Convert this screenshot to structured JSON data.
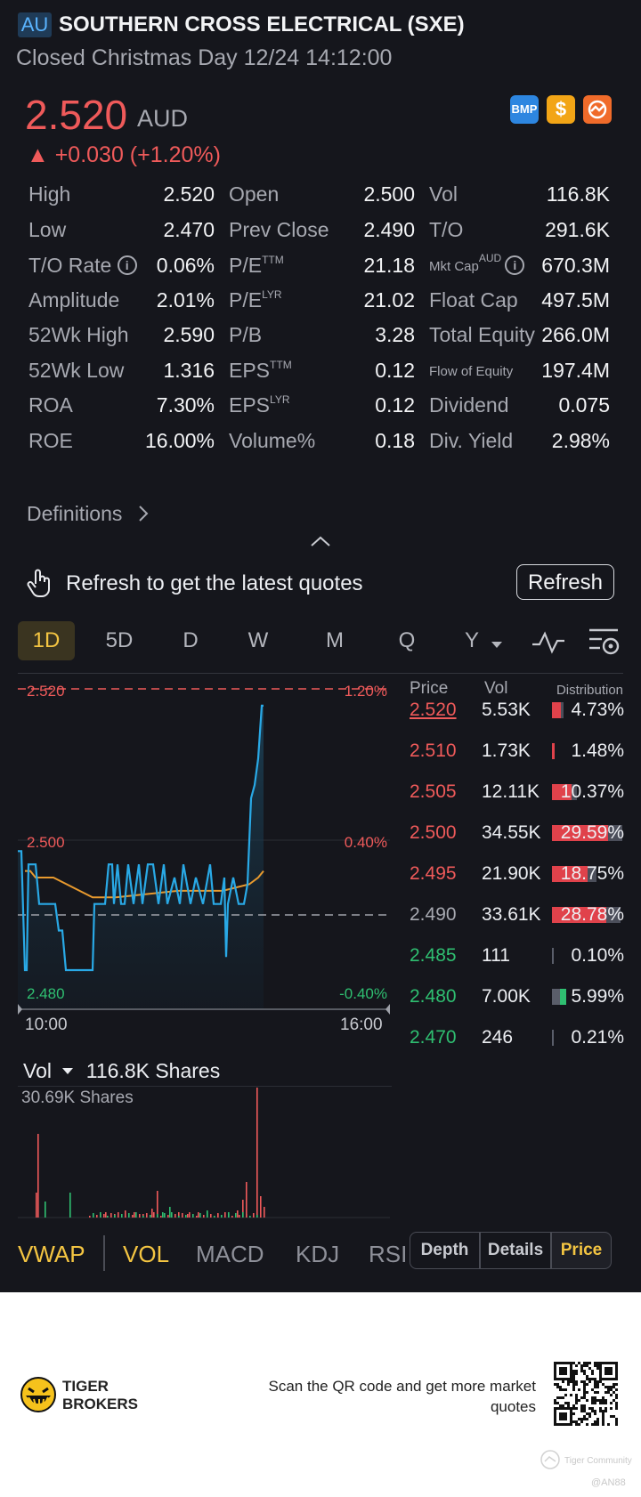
{
  "header": {
    "market": "AU",
    "title": "SOUTHERN CROSS ELECTRICAL (SXE)",
    "status": "Closed Christmas Day 12/24 14:12:00"
  },
  "quote": {
    "price": "2.520",
    "currency": "AUD",
    "change": "▲ +0.030 (+1.20%)",
    "badge_bmp": "BMP"
  },
  "stats": {
    "col1": [
      {
        "label": "High",
        "value": "2.520"
      },
      {
        "label": "Low",
        "value": "2.470"
      },
      {
        "label": "T/O Rate",
        "value": "0.06%"
      },
      {
        "label": "Amplitude",
        "value": "2.01%"
      },
      {
        "label": "52Wk High",
        "value": "2.590"
      },
      {
        "label": "52Wk Low",
        "value": "1.316"
      },
      {
        "label": "ROA",
        "value": "7.30%"
      },
      {
        "label": "ROE",
        "value": "16.00%"
      }
    ],
    "col2": [
      {
        "label": "Open",
        "sup": "",
        "value": "2.500"
      },
      {
        "label": "Prev Close",
        "sup": "",
        "value": "2.490"
      },
      {
        "label": "P/E",
        "sup": "TTM",
        "value": "21.18"
      },
      {
        "label": "P/E",
        "sup": "LYR",
        "value": "21.02"
      },
      {
        "label": "P/B",
        "sup": "",
        "value": "3.28"
      },
      {
        "label": "EPS",
        "sup": "TTM",
        "value": "0.12"
      },
      {
        "label": "EPS",
        "sup": "LYR",
        "value": "0.12"
      },
      {
        "label": "Volume%",
        "sup": "",
        "value": "0.18"
      }
    ],
    "col3": [
      {
        "label": "Vol",
        "value": "116.8K"
      },
      {
        "label": "T/O",
        "value": "291.6K"
      },
      {
        "label": "Mkt Cap",
        "sup": "AUD",
        "value": "670.3M"
      },
      {
        "label": "Float Cap",
        "value": "497.5M"
      },
      {
        "label": "Total Equity",
        "value": "266.0M"
      },
      {
        "label": "Flow of Equity",
        "value": "197.4M"
      },
      {
        "label": "Dividend",
        "value": "0.075"
      },
      {
        "label": "Div. Yield",
        "value": "2.98%"
      }
    ]
  },
  "definitions_label": "Definitions",
  "refresh": {
    "message": "Refresh to get the latest quotes",
    "button": "Refresh"
  },
  "periods": [
    "1D",
    "5D",
    "D",
    "W",
    "M",
    "Q",
    "Y"
  ],
  "active_period": "1D",
  "chart": {
    "y_labels": {
      "top": "2.520",
      "mid": "2.500",
      "bottom": "2.480"
    },
    "pct_labels": {
      "top": "1.20%",
      "mid": "0.40%",
      "bottom": "-0.40%"
    },
    "x_labels": {
      "start": "10:00",
      "end": "16:00"
    }
  },
  "chart_data": {
    "type": "line",
    "xlabel": "",
    "ylabel": "",
    "x": [
      "10:00",
      "16:00"
    ],
    "ylim": [
      2.476,
      2.522
    ],
    "prev_close": 2.49,
    "series": [],
    "volume": {
      "title": "Vol",
      "total": "116.8K Shares",
      "max": "30.69K Shares"
    }
  },
  "depth": {
    "headers": {
      "price": "Price",
      "vol": "Vol",
      "dist": "Distribution"
    },
    "rows": [
      {
        "price": "2.520",
        "vol": "5.53K",
        "pct": "4.73%",
        "p": 4.73,
        "color": "#ef5a5a",
        "underline": true
      },
      {
        "price": "2.510",
        "vol": "1.73K",
        "pct": "1.48%",
        "p": 1.48,
        "color": "#ef5a5a"
      },
      {
        "price": "2.505",
        "vol": "12.11K",
        "pct": "10.37%",
        "p": 10.37,
        "color": "#ef5a5a"
      },
      {
        "price": "2.500",
        "vol": "34.55K",
        "pct": "29.59%",
        "p": 29.59,
        "color": "#ef5a5a"
      },
      {
        "price": "2.495",
        "vol": "21.90K",
        "pct": "18.75%",
        "p": 18.75,
        "color": "#ef5a5a"
      },
      {
        "price": "2.490",
        "vol": "33.61K",
        "pct": "28.78%",
        "p": 28.78,
        "color": "#a7a9b1"
      },
      {
        "price": "2.485",
        "vol": "111",
        "pct": "0.10%",
        "p": 0.1,
        "color": "#2fbf71"
      },
      {
        "price": "2.480",
        "vol": "7.00K",
        "pct": "5.99%",
        "p": 5.99,
        "color": "#2fbf71"
      },
      {
        "price": "2.470",
        "vol": "246",
        "pct": "0.21%",
        "p": 0.21,
        "color": "#2fbf71"
      }
    ]
  },
  "volume": {
    "label": "Vol",
    "total": "116.8K Shares",
    "max": "30.69K Shares"
  },
  "indicators": [
    "VWAP",
    "VOL",
    "MACD",
    "KDJ",
    "RSI"
  ],
  "segments": [
    "Depth",
    "Details",
    "Price"
  ],
  "footer": {
    "brand_line1": "TIGER",
    "brand_line2": "BROKERS",
    "scan": "Scan the QR code and get more market quotes",
    "community": "Tiger Community",
    "handle": "@AN88"
  },
  "colors": {
    "up": "#ef5a5a",
    "down": "#2fbf71",
    "accent": "#f4c542",
    "line": "#29a9e6",
    "avg": "#e89a2e"
  }
}
